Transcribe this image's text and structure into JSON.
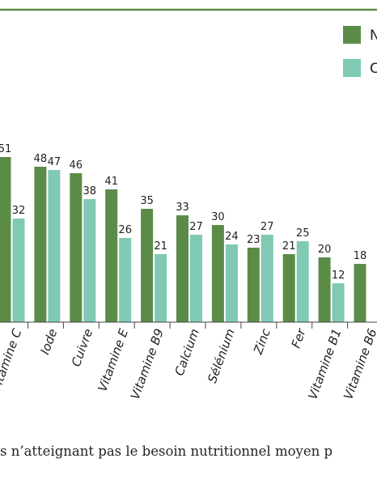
{
  "chart_data": {
    "type": "bar",
    "categories": [
      "Vitamine C",
      "Iode",
      "Cuivre",
      "Vitamine E",
      "Vitamine B9",
      "Calcium",
      "Sélénium",
      "Zinc",
      "Fer",
      "Vitamine B1",
      "Vitamine B6"
    ],
    "series": [
      {
        "name": "N",
        "values": [
          51,
          48,
          46,
          41,
          35,
          33,
          30,
          23,
          21,
          20,
          18
        ]
      },
      {
        "name": "C",
        "values": [
          32,
          47,
          38,
          26,
          21,
          27,
          24,
          27,
          25,
          12,
          null
        ]
      }
    ],
    "value_labels": [
      [
        "51",
        "48",
        "46",
        "41",
        "35",
        "33",
        "30",
        "23",
        "21",
        "20",
        "18"
      ],
      [
        "32",
        "47",
        "38",
        "26",
        "21",
        "27",
        "24",
        "27",
        "25",
        "12",
        ""
      ]
    ],
    "title": "",
    "xlabel": "",
    "ylabel": "",
    "ylim": [
      0,
      60
    ],
    "legend_position": "top-right",
    "colors": {
      "series_1": "#5b8c47",
      "series_2": "#7fc9b5",
      "frame": "#5b8c47",
      "text": "#222222"
    }
  },
  "caption": "s n’atteignant pas le besoin nutritionnel moyen p"
}
